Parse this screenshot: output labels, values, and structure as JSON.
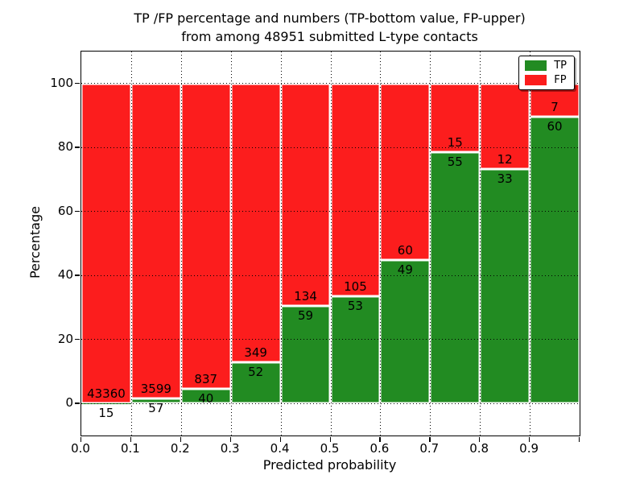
{
  "chart_data": {
    "type": "bar",
    "variant": "stacked-percentage-histogram",
    "title_lines": [
      "TP /FP percentage and numbers (TP-bottom value, FP-upper)",
      "from among 48951 submitted L-type contacts"
    ],
    "xlabel": "Predicted probability",
    "ylabel": "Percentage",
    "total_contacts": 48951,
    "x_tick_labels": [
      "0.0",
      "0.1",
      "0.2",
      "0.3",
      "0.4",
      "0.5",
      "0.6",
      "0.7",
      "0.8",
      "0.9"
    ],
    "x_range": [
      0.0,
      1.0
    ],
    "y_ticks": [
      0,
      20,
      40,
      60,
      80,
      100
    ],
    "ylim": [
      -10,
      110
    ],
    "grid": "dotted black on both axes, drawn over bars",
    "legend": {
      "position": "upper right",
      "entries": [
        {
          "label": "TP",
          "color": "#228b22"
        },
        {
          "label": "FP",
          "color": "#fc1d1d"
        }
      ]
    },
    "bins": [
      {
        "x_start": 0.0,
        "x_end": 0.1,
        "tp": 15,
        "fp": 43360,
        "tp_pct": 0.03
      },
      {
        "x_start": 0.1,
        "x_end": 0.2,
        "tp": 57,
        "fp": 3599,
        "tp_pct": 1.56
      },
      {
        "x_start": 0.2,
        "x_end": 0.3,
        "tp": 40,
        "fp": 837,
        "tp_pct": 4.56
      },
      {
        "x_start": 0.3,
        "x_end": 0.4,
        "tp": 52,
        "fp": 349,
        "tp_pct": 12.97
      },
      {
        "x_start": 0.4,
        "x_end": 0.5,
        "tp": 59,
        "fp": 134,
        "tp_pct": 30.57
      },
      {
        "x_start": 0.5,
        "x_end": 0.6,
        "tp": 53,
        "fp": 105,
        "tp_pct": 33.54
      },
      {
        "x_start": 0.6,
        "x_end": 0.7,
        "tp": 49,
        "fp": 60,
        "tp_pct": 44.95
      },
      {
        "x_start": 0.7,
        "x_end": 0.8,
        "tp": 55,
        "fp": 15,
        "tp_pct": 78.57
      },
      {
        "x_start": 0.8,
        "x_end": 0.9,
        "tp": 33,
        "fp": 12,
        "tp_pct": 73.33
      },
      {
        "x_start": 0.9,
        "x_end": 1.0,
        "tp": 60,
        "fp": 7,
        "tp_pct": 89.55
      }
    ]
  },
  "colors": {
    "tp": "#228b22",
    "fp": "#fc1d1d",
    "grid": "#000000",
    "axis": "#000000",
    "background": "#ffffff"
  }
}
